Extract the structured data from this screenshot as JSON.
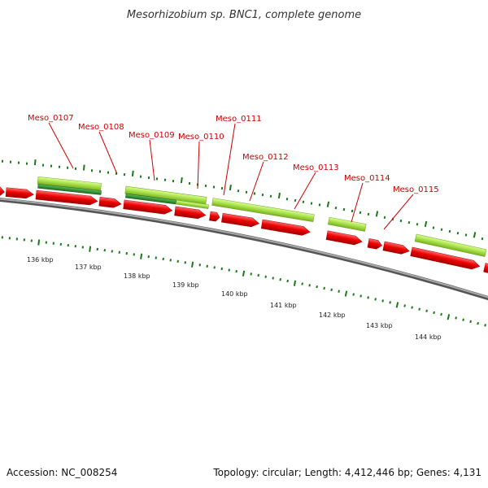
{
  "title": "Mesorhizobium sp. BNC1, complete genome",
  "footer": {
    "accession": "Accession: NC_008254",
    "summary": "Topology: circular; Length: 4,412,446 bp; Genes: 4,131"
  },
  "gene_labels": [
    "Meso_0107",
    "Meso_0108",
    "Meso_0109",
    "Meso_0110",
    "Meso_0111",
    "Meso_0112",
    "Meso_0113",
    "Meso_0114",
    "Meso_0115"
  ],
  "kbp_labels": [
    "136 kbp",
    "137 kbp",
    "138 kbp",
    "139 kbp",
    "140 kbp",
    "141 kbp",
    "142 kbp",
    "143 kbp",
    "144 kbp"
  ],
  "colors": {
    "cds": "#ee0000",
    "cds_light": "#ff5555",
    "feature_light": "#a8e04a",
    "feature_dark": "#2e8b2e",
    "backbone": "#888888",
    "ticks": "#1a7a1a",
    "label": "#cc0000"
  }
}
